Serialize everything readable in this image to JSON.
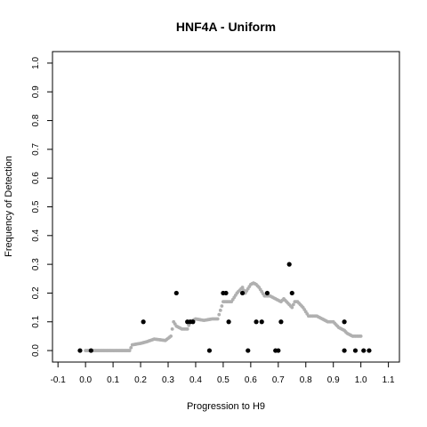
{
  "chart_data": {
    "type": "scatter",
    "title": "HNF4A - Uniform",
    "xlabel": "Progression to H9",
    "ylabel": "Frequency of Detection",
    "xlim": [
      -0.12,
      1.14
    ],
    "ylim": [
      -0.04,
      1.04
    ],
    "x_ticks": [
      -0.1,
      0.0,
      0.1,
      0.2,
      0.3,
      0.4,
      0.5,
      0.6,
      0.7,
      0.8,
      0.9,
      1.0,
      1.1
    ],
    "y_ticks": [
      0.0,
      0.1,
      0.2,
      0.3,
      0.4,
      0.5,
      0.6,
      0.7,
      0.8,
      0.9,
      1.0
    ],
    "x_tick_labels": [
      "-0.1",
      "0.0",
      "0.1",
      "0.2",
      "0.3",
      "0.4",
      "0.5",
      "0.6",
      "0.7",
      "0.8",
      "0.9",
      "1.0",
      "1.1"
    ],
    "y_tick_labels": [
      "0.0",
      "0.1",
      "0.2",
      "0.3",
      "0.4",
      "0.5",
      "0.6",
      "0.7",
      "0.8",
      "0.9",
      "1.0"
    ],
    "grid": false,
    "series": [
      {
        "color": "#000000",
        "points": [
          [
            -0.02,
            0.0
          ],
          [
            0.02,
            0.0
          ],
          [
            0.21,
            0.1
          ],
          [
            0.33,
            0.2
          ],
          [
            0.37,
            0.1
          ],
          [
            0.38,
            0.1
          ],
          [
            0.39,
            0.1
          ],
          [
            0.45,
            0.0
          ],
          [
            0.5,
            0.2
          ],
          [
            0.51,
            0.2
          ],
          [
            0.52,
            0.1
          ],
          [
            0.57,
            0.2
          ],
          [
            0.59,
            0.0
          ],
          [
            0.62,
            0.1
          ],
          [
            0.64,
            0.1
          ],
          [
            0.66,
            0.2
          ],
          [
            0.69,
            0.0
          ],
          [
            0.7,
            0.0
          ],
          [
            0.71,
            0.1
          ],
          [
            0.74,
            0.3
          ],
          [
            0.75,
            0.2
          ],
          [
            0.94,
            0.0
          ],
          [
            0.94,
            0.1
          ],
          [
            0.98,
            0.0
          ],
          [
            1.01,
            0.0
          ],
          [
            1.03,
            0.0
          ]
        ]
      },
      {
        "color": "#b0b0b0",
        "curve": [
          [
            0.0,
            0.0
          ],
          [
            0.05,
            0.0
          ],
          [
            0.1,
            0.0
          ],
          [
            0.16,
            0.0
          ],
          [
            0.17,
            0.02
          ],
          [
            0.2,
            0.025
          ],
          [
            0.22,
            0.03
          ],
          [
            0.25,
            0.04
          ],
          [
            0.29,
            0.035
          ],
          [
            0.31,
            0.05
          ],
          [
            0.32,
            0.1
          ],
          [
            0.33,
            0.085
          ],
          [
            0.35,
            0.075
          ],
          [
            0.37,
            0.075
          ],
          [
            0.38,
            0.1
          ],
          [
            0.4,
            0.11
          ],
          [
            0.43,
            0.105
          ],
          [
            0.46,
            0.11
          ],
          [
            0.48,
            0.11
          ],
          [
            0.49,
            0.14
          ],
          [
            0.5,
            0.17
          ],
          [
            0.53,
            0.17
          ],
          [
            0.55,
            0.2
          ],
          [
            0.57,
            0.22
          ],
          [
            0.58,
            0.2
          ],
          [
            0.6,
            0.23
          ],
          [
            0.61,
            0.235
          ],
          [
            0.62,
            0.23
          ],
          [
            0.63,
            0.22
          ],
          [
            0.65,
            0.19
          ],
          [
            0.67,
            0.19
          ],
          [
            0.69,
            0.18
          ],
          [
            0.71,
            0.17
          ],
          [
            0.72,
            0.18
          ],
          [
            0.73,
            0.17
          ],
          [
            0.75,
            0.15
          ],
          [
            0.76,
            0.17
          ],
          [
            0.77,
            0.17
          ],
          [
            0.79,
            0.15
          ],
          [
            0.81,
            0.12
          ],
          [
            0.84,
            0.12
          ],
          [
            0.86,
            0.11
          ],
          [
            0.88,
            0.1
          ],
          [
            0.9,
            0.1
          ],
          [
            0.92,
            0.08
          ],
          [
            0.94,
            0.07
          ],
          [
            0.95,
            0.06
          ],
          [
            0.97,
            0.05
          ],
          [
            1.0,
            0.05
          ]
        ]
      }
    ]
  }
}
